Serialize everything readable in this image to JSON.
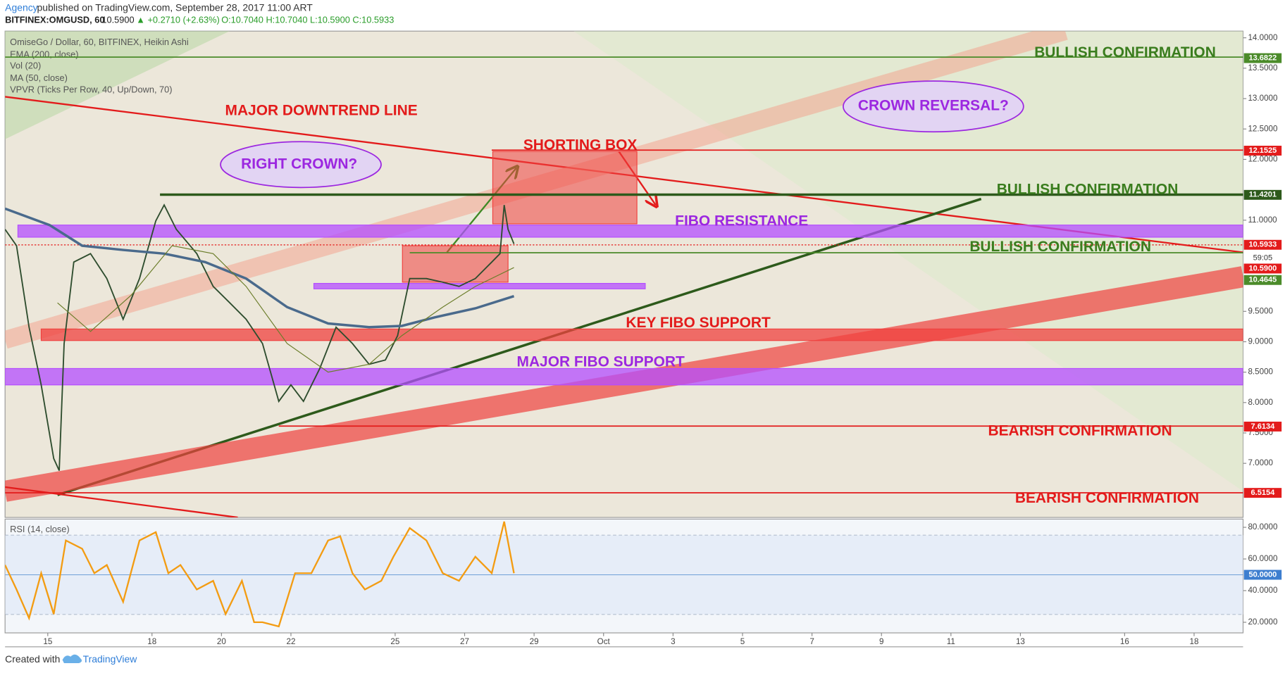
{
  "header": {
    "author": "Agency",
    "published": "published on TradingView.com, September 28, 2017 11:00 ART",
    "symbol": "BITFINEX:OMGUSD, 60",
    "last": "10.5900",
    "change": "▲ +0.2710 (+2.63%)",
    "ohlc": "O:10.7040 H:10.7040 L:10.5900 C:10.5933"
  },
  "footer": {
    "created": "Created with",
    "brand": "TradingView"
  },
  "chart_data": [
    {
      "type": "line",
      "title": "OmiseGo / Dollar, 60, BITFINEX, Heikin Ashi",
      "indicators": [
        "Vol (20)",
        "VPVR (Ticks Per Row, 40, Up/Down, 70)"
      ],
      "countdown": "59:05",
      "xlim": [
        13.77,
        49.41
      ],
      "ylim": [
        6.11,
        14.11
      ],
      "xticks": [
        {
          "value": 15,
          "label": "15"
        },
        {
          "value": 18,
          "label": "18"
        },
        {
          "value": 20,
          "label": "20"
        },
        {
          "value": 22,
          "label": "22"
        },
        {
          "value": 25,
          "label": "25"
        },
        {
          "value": 27,
          "label": "27"
        },
        {
          "value": 29,
          "label": "29"
        },
        {
          "value": 31,
          "label": "Oct"
        },
        {
          "value": 33,
          "label": "3"
        },
        {
          "value": 35,
          "label": "5"
        },
        {
          "value": 37,
          "label": "7"
        },
        {
          "value": 39,
          "label": "9"
        },
        {
          "value": 41,
          "label": "11"
        },
        {
          "value": 43,
          "label": "13"
        },
        {
          "value": 46,
          "label": "16"
        },
        {
          "value": 48,
          "label": "18"
        }
      ],
      "yticks": [
        {
          "value": 7,
          "label": "7.0000"
        },
        {
          "value": 7.5,
          "label": "7.5000"
        },
        {
          "value": 8,
          "label": "8.0000"
        },
        {
          "value": 8.5,
          "label": "8.5000"
        },
        {
          "value": 9,
          "label": "9.0000"
        },
        {
          "value": 9.5,
          "label": "9.5000"
        },
        {
          "value": 11,
          "label": "11.0000"
        },
        {
          "value": 12,
          "label": "12.0000"
        },
        {
          "value": 12.5,
          "label": "12.5000"
        },
        {
          "value": 13,
          "label": "13.0000"
        },
        {
          "value": 13.5,
          "label": "13.5000"
        },
        {
          "value": 14,
          "label": "14.0000"
        }
      ],
      "series": [
        {
          "name": "OmiseGo / Dollar, 60, BITFINEX, Heikin Ashi",
          "color": "#2e4d2e",
          "x": [
            13.77,
            14.1,
            14.46,
            14.81,
            15.17,
            15.33,
            15.47,
            15.75,
            16.23,
            16.7,
            17.17,
            17.64,
            18.11,
            18.35,
            18.7,
            19.29,
            19.76,
            20.24,
            20.71,
            21.18,
            21.65,
            22.0,
            22.36,
            22.83,
            23.3,
            23.77,
            24.25,
            24.72,
            25.07,
            25.42,
            25.9,
            26.37,
            26.84,
            27.31,
            27.78,
            28.02,
            28.14,
            28.25,
            28.42
          ],
          "values": [
            10.85,
            10.58,
            9.24,
            8.29,
            7.08,
            6.88,
            8.97,
            10.31,
            10.45,
            10.04,
            9.37,
            10.04,
            10.99,
            11.25,
            10.85,
            10.45,
            9.91,
            9.64,
            9.37,
            8.97,
            8.02,
            8.29,
            8.02,
            8.56,
            9.24,
            8.97,
            8.63,
            8.7,
            9.1,
            10.04,
            10.04,
            9.98,
            9.91,
            10.04,
            10.31,
            10.45,
            11.25,
            10.85,
            10.61
          ]
        },
        {
          "name": "EMA (200, close)",
          "color": "#4a6a8c",
          "x": [
            13.77,
            15.05,
            15.99,
            17.17,
            18.35,
            19.53,
            20.71,
            21.89,
            23.07,
            24.25,
            25.19,
            26.13,
            27.31,
            28.42
          ],
          "values": [
            11.19,
            10.92,
            10.58,
            10.51,
            10.45,
            10.31,
            10.04,
            9.57,
            9.3,
            9.24,
            9.26,
            9.4,
            9.55,
            9.75
          ]
        },
        {
          "name": "MA (50, close)",
          "color": "#6b7d2a",
          "x": [
            15.28,
            16.23,
            17.41,
            18.58,
            19.76,
            20.71,
            21.89,
            23.07,
            24.25,
            25.19,
            26.37,
            27.31,
            28.42
          ],
          "values": [
            9.64,
            9.17,
            9.77,
            10.58,
            10.45,
            9.91,
            8.97,
            8.5,
            8.63,
            9.1,
            9.57,
            9.91,
            10.22
          ]
        }
      ],
      "levels": [
        {
          "value": 13.6822,
          "color": "#4b8b2a",
          "x_from": 13.77
        },
        {
          "value": 12.1525,
          "color": "#e31b1b",
          "x_from": 27.78
        },
        {
          "value": 11.4201,
          "color": "#2d5a1b",
          "x_from": 18.23
        },
        {
          "value": 10.5933,
          "color": "#e31b1b",
          "x_from": 13.77
        },
        {
          "value": 10.59,
          "label": "10.5900",
          "color": "#e31b1b"
        },
        {
          "value": 10.4645,
          "color": "#4b8b2a",
          "x_from": 25.42
        },
        {
          "value": 7.6134,
          "color": "#e31b1b",
          "x_from": 21.65
        },
        {
          "value": 6.5154,
          "color": "#e31b1b",
          "x_from": 13.77
        }
      ],
      "bands": [
        {
          "x": [
            14.14,
            49.41
          ],
          "y": [
            10.72,
            10.92
          ],
          "color": "#b44dff"
        },
        {
          "x": [
            22.66,
            32.2
          ],
          "y": [
            9.87,
            9.96
          ],
          "color": "#b44dff"
        },
        {
          "x": [
            14.81,
            49.41
          ],
          "y": [
            9.02,
            9.21
          ],
          "color": "#f0413f"
        },
        {
          "x": [
            13.77,
            49.41
          ],
          "y": [
            8.29,
            8.56
          ],
          "color": "#b44dff"
        },
        {
          "x": [
            27.81,
            31.96
          ],
          "y": [
            10.94,
            12.13
          ],
          "color": "#f0413f"
        },
        {
          "x": [
            25.21,
            28.25
          ],
          "y": [
            9.98,
            10.58
          ],
          "color": "#f0413f"
        }
      ],
      "drawings": [
        {
          "x": [
            13.77,
            49.41
          ],
          "y": [
            13.03,
            10.47
          ],
          "color": "#e31b1b"
        },
        {
          "x": [
            15.28,
            41.87
          ],
          "y": [
            6.48,
            11.35
          ],
          "color": "#2d5a1b"
        },
        {
          "x": [
            13.77,
            49.41
          ],
          "y": [
            6.54,
            10.07
          ],
          "color": "#f0413f"
        },
        {
          "x": [
            13.77,
            44.29
          ],
          "y": [
            9.03,
            14.11
          ],
          "color": "#f4a08a"
        },
        {
          "x": [
            26.49,
            28.49
          ],
          "y": [
            10.47,
            11.86
          ],
          "color": "#3f8a25"
        },
        {
          "x": [
            31.44,
            32.5
          ],
          "y": [
            12.13,
            11.25
          ],
          "color": "#e31b1b"
        },
        {
          "x": [
            13.77,
            20.47
          ],
          "y": [
            6.61,
            6.11
          ],
          "color": "#e31b1b"
        }
      ],
      "annotations": [
        {
          "text": "MAJOR DOWNTREND LINE",
          "color": "#e31b1b"
        },
        {
          "text": "SHORTING BOX",
          "color": "#e31b1b"
        },
        {
          "text": "RIGHT CROWN?",
          "color": "#9c27e0"
        },
        {
          "text": "CROWN REVERSAL?",
          "color": "#9c27e0"
        },
        {
          "text": "BULLISH CONFIRMATION",
          "color": "#3a7d1e"
        },
        {
          "text": "BULLISH CONFIRMATION",
          "color": "#3a7d1e"
        },
        {
          "text": "FIBO RESISTANCE",
          "color": "#9c27e0"
        },
        {
          "text": "BULLISH CONFIRMATION",
          "color": "#3a7d1e"
        },
        {
          "text": "KEY FIBO SUPPORT",
          "color": "#e31b1b"
        },
        {
          "text": "MAJOR FIBO SUPPORT",
          "color": "#9c27e0"
        },
        {
          "text": "BEARISH CONFIRMATION",
          "color": "#e31b1b"
        },
        {
          "text": "BEARISH CONFIRMATION",
          "color": "#e31b1b"
        }
      ]
    },
    {
      "type": "line",
      "title": "RSI (14, close)",
      "xlim": [
        13.77,
        49.41
      ],
      "ylim": [
        13.3,
        85.2
      ],
      "yticks": [
        {
          "value": 20,
          "label": "20.0000"
        },
        {
          "value": 40,
          "label": "40.0000"
        },
        {
          "value": 60,
          "label": "60.0000"
        },
        {
          "value": 80,
          "label": "80.0000"
        }
      ],
      "levels": [
        25,
        75
      ],
      "marker": {
        "value": 50,
        "label": "50.0000"
      },
      "series": [
        {
          "color": "#f39c12",
          "x": [
            13.77,
            14.1,
            14.46,
            14.81,
            15.17,
            15.52,
            15.99,
            16.34,
            16.7,
            17.17,
            17.64,
            18.11,
            18.47,
            18.82,
            19.29,
            19.76,
            20.12,
            20.59,
            20.94,
            21.18,
            21.65,
            22.12,
            22.59,
            23.07,
            23.42,
            23.77,
            24.13,
            24.6,
            24.95,
            25.42,
            25.9,
            26.37,
            26.84,
            27.31,
            27.78,
            28.14,
            28.42
          ],
          "values": [
            56.2,
            40.7,
            22.6,
            51.0,
            25.2,
            71.7,
            66.5,
            51.0,
            56.2,
            32.9,
            71.7,
            76.9,
            51.0,
            56.2,
            40.7,
            46.2,
            25.2,
            46.2,
            20.0,
            20.0,
            17.4,
            51.0,
            51.0,
            71.7,
            74.3,
            51.0,
            40.7,
            46.2,
            61.4,
            79.5,
            71.7,
            51.0,
            46.2,
            61.4,
            51.0,
            83.6,
            51.0
          ]
        }
      ]
    }
  ]
}
